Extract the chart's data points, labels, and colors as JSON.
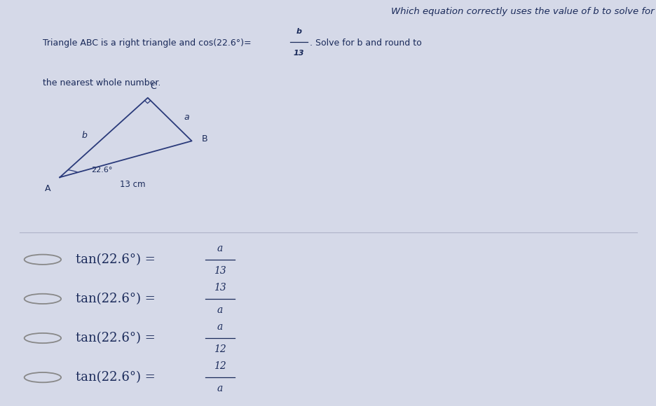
{
  "bg_top_color": "#dde2ee",
  "bg_bottom_color": "#d5d9e8",
  "title_question": "Which equation correctly uses the value of b to solve for a?",
  "text_color": "#1a2a5a",
  "line_color": "#2a3a7a",
  "problem_line1": "Triangle ABC is a right triangle and cos(22.6°)=",
  "frac_num": "b",
  "frac_den": "13",
  "problem_line1_end": ". Solve for b and round to",
  "problem_line2": "the nearest whole number.",
  "triangle_A": [
    0.115,
    0.265
  ],
  "triangle_B": [
    0.305,
    0.175
  ],
  "triangle_C": [
    0.235,
    0.08
  ],
  "options": [
    {
      "num": "a",
      "den": "13"
    },
    {
      "num": "13",
      "den": "a"
    },
    {
      "num": "a",
      "den": "12"
    },
    {
      "num": "12",
      "den": "a"
    }
  ],
  "circle_color": "#888888",
  "opt_text_color": "#1a2a5a"
}
